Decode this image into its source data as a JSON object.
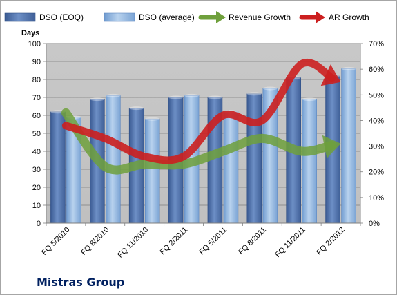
{
  "footer": {
    "company": "Mistras Group"
  },
  "chart_data": {
    "type": "bar",
    "categories": [
      "FQ 5/2010",
      "FQ 8/2010",
      "FQ 11/2010",
      "FQ 2/2011",
      "FQ 5/2011",
      "FQ 8/2011",
      "FQ 11/2011",
      "FQ 2/2012"
    ],
    "ylabel": "Days",
    "ylim": [
      0,
      100
    ],
    "yticks": [
      "0",
      "10",
      "20",
      "30",
      "40",
      "50",
      "60",
      "70",
      "80",
      "90",
      "100"
    ],
    "y2lim": [
      0,
      0.7
    ],
    "y2ticks": [
      "0%",
      "10%",
      "20%",
      "30%",
      "40%",
      "50%",
      "60%",
      "70%"
    ],
    "grid": true,
    "legend_position": "top",
    "series": [
      {
        "name": "DSO (EOQ)",
        "kind": "bar",
        "axis": "left",
        "color": "#4f6fa8",
        "values": [
          62,
          69,
          64,
          70,
          70,
          72,
          81,
          82
        ]
      },
      {
        "name": "DSO (average)",
        "kind": "bar",
        "axis": "left",
        "color": "#8db3e2",
        "values": [
          59,
          71,
          58,
          71,
          62,
          75,
          69,
          86
        ]
      },
      {
        "name": "Revenue Growth",
        "kind": "line-arrow",
        "axis": "right",
        "color": "#6fa03c",
        "values": [
          0.43,
          0.22,
          0.23,
          0.23,
          0.28,
          0.33,
          0.28,
          0.31
        ]
      },
      {
        "name": "AR Growth",
        "kind": "line-arrow",
        "axis": "right",
        "color": "#cc1f1f",
        "values": [
          0.38,
          0.33,
          0.26,
          0.26,
          0.42,
          0.4,
          0.62,
          0.55
        ]
      }
    ]
  }
}
